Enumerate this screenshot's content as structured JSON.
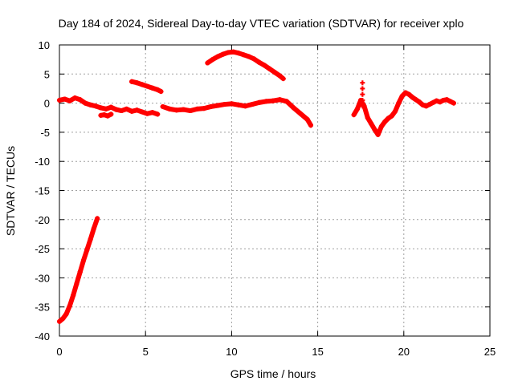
{
  "chart_data": {
    "type": "scatter",
    "title": "Day 184 of 2024, Sidereal Day-to-day VTEC variation (SDTVAR) for receiver xplo",
    "xlabel": "GPS time / hours",
    "ylabel": "SDTVAR / TECUs",
    "xlim": [
      0,
      25
    ],
    "ylim": [
      -40,
      10
    ],
    "xticks": [
      "0",
      "5",
      "10",
      "15",
      "20",
      "25"
    ],
    "yticks": [
      "10",
      "5",
      "0",
      "-5",
      "-10",
      "-15",
      "-20",
      "-25",
      "-30",
      "-35",
      "-40"
    ],
    "grid": true,
    "marker": "plus",
    "series_color": "#ff0000",
    "segments": [
      {
        "name": "rising-arc-start",
        "x": [
          0.0,
          0.2,
          0.4,
          0.6,
          0.8,
          1.0,
          1.2,
          1.4,
          1.6,
          1.8,
          2.0,
          2.2
        ],
        "y": [
          -37.5,
          -37.0,
          -36.2,
          -34.8,
          -33.0,
          -31.0,
          -29.0,
          -27.0,
          -25.2,
          -23.4,
          -21.5,
          -19.8
        ]
      },
      {
        "name": "baseline-early",
        "x": [
          0.0,
          0.3,
          0.6,
          0.9,
          1.2,
          1.5,
          1.8,
          2.1,
          2.4,
          2.7,
          3.0,
          3.3,
          3.6,
          3.9,
          4.2,
          4.5,
          4.8,
          5.1,
          5.4,
          5.7
        ],
        "y": [
          0.5,
          0.7,
          0.4,
          0.9,
          0.6,
          0.0,
          -0.3,
          -0.5,
          -0.8,
          -1.0,
          -0.7,
          -1.1,
          -1.3,
          -1.0,
          -1.4,
          -1.2,
          -1.5,
          -1.8,
          -1.6,
          -1.9
        ]
      },
      {
        "name": "baseline-low-patch",
        "x": [
          2.4,
          2.6,
          2.8,
          3.0
        ],
        "y": [
          -2.1,
          -2.0,
          -2.2,
          -1.9
        ]
      },
      {
        "name": "upper-short",
        "x": [
          4.2,
          4.5,
          4.8,
          5.1,
          5.4,
          5.7,
          5.9
        ],
        "y": [
          3.7,
          3.5,
          3.2,
          2.9,
          2.6,
          2.3,
          2.0
        ]
      },
      {
        "name": "baseline-mid",
        "x": [
          6.0,
          6.4,
          6.8,
          7.2,
          7.6,
          8.0,
          8.4,
          8.8,
          9.2,
          9.6,
          10.0,
          10.4,
          10.8,
          11.2,
          11.6,
          12.0,
          12.4,
          12.8,
          13.2,
          13.6,
          14.0,
          14.4,
          14.6
        ],
        "y": [
          -0.6,
          -1.0,
          -1.2,
          -1.1,
          -1.3,
          -1.0,
          -0.9,
          -0.6,
          -0.4,
          -0.2,
          -0.1,
          -0.3,
          -0.5,
          -0.2,
          0.1,
          0.3,
          0.4,
          0.6,
          0.3,
          -0.8,
          -1.8,
          -2.8,
          -3.8
        ]
      },
      {
        "name": "upper-arc",
        "x": [
          8.6,
          8.9,
          9.2,
          9.5,
          9.8,
          10.1,
          10.4,
          10.7,
          11.0,
          11.3,
          11.6,
          11.9,
          12.2,
          12.5,
          12.8,
          13.0
        ],
        "y": [
          6.9,
          7.5,
          8.0,
          8.4,
          8.7,
          8.8,
          8.6,
          8.3,
          8.0,
          7.6,
          7.0,
          6.5,
          5.9,
          5.3,
          4.7,
          4.2
        ]
      },
      {
        "name": "late-segment",
        "x": [
          17.1,
          17.3,
          17.5,
          17.7,
          17.9,
          18.1,
          18.3,
          18.5,
          18.7,
          18.9,
          19.1,
          19.3,
          19.5,
          19.7,
          19.9,
          20.1,
          20.3,
          20.5,
          20.7,
          20.9,
          21.1,
          21.3,
          21.5,
          21.7,
          21.9,
          22.1,
          22.3,
          22.5,
          22.7,
          22.9
        ],
        "y": [
          -2.0,
          -1.0,
          0.5,
          -0.5,
          -2.5,
          -3.5,
          -4.5,
          -5.4,
          -4.0,
          -3.2,
          -2.6,
          -2.2,
          -1.4,
          0.0,
          1.2,
          1.8,
          1.5,
          1.0,
          0.6,
          0.2,
          -0.3,
          -0.5,
          -0.2,
          0.1,
          0.4,
          0.2,
          0.5,
          0.6,
          0.3,
          0.0
        ]
      },
      {
        "name": "late-spike",
        "x": [
          17.6,
          17.6,
          17.6,
          17.6,
          17.6
        ],
        "y": [
          3.5,
          2.5,
          1.5,
          0.5,
          -0.5
        ]
      }
    ]
  }
}
